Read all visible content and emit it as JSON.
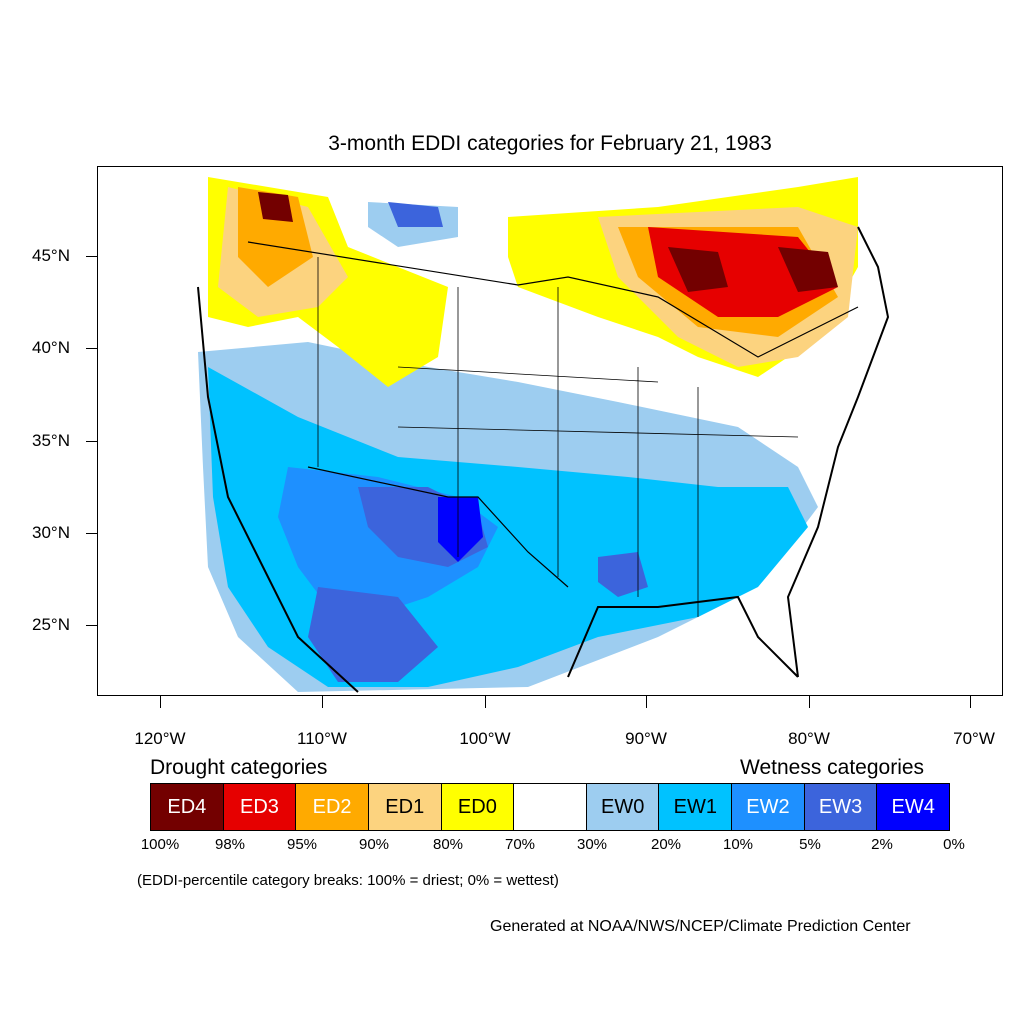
{
  "title": "3-month EDDI categories for February 21, 1983",
  "lat_labels": [
    "45°N",
    "40°N",
    "35°N",
    "30°N",
    "25°N"
  ],
  "lon_labels": [
    "120°W",
    "110°W",
    "100°W",
    "90°W",
    "80°W",
    "70°W"
  ],
  "drought_heading": "Drought categories",
  "wetness_heading": "Wetness categories",
  "legend": [
    {
      "label": "ED4",
      "color": "#730000",
      "text_color": "#ffffff"
    },
    {
      "label": "ED3",
      "color": "#e60000",
      "text_color": "#ffffff"
    },
    {
      "label": "ED2",
      "color": "#ffaa00",
      "text_color": "#ffffff"
    },
    {
      "label": "ED1",
      "color": "#fcd37f",
      "text_color": "#000000"
    },
    {
      "label": "ED0",
      "color": "#ffff00",
      "text_color": "#000000"
    },
    {
      "label": "",
      "color": "#ffffff",
      "text_color": "#000000"
    },
    {
      "label": "EW0",
      "color": "#9dcdf0",
      "text_color": "#000000"
    },
    {
      "label": "EW1",
      "color": "#00c2ff",
      "text_color": "#000000"
    },
    {
      "label": "EW2",
      "color": "#1e90ff",
      "text_color": "#ffffff"
    },
    {
      "label": "EW3",
      "color": "#3c64dc",
      "text_color": "#ffffff"
    },
    {
      "label": "EW4",
      "color": "#0000ff",
      "text_color": "#ffffff"
    }
  ],
  "percent_breaks": [
    "100%",
    "98%",
    "95%",
    "90%",
    "80%",
    "70%",
    "30%",
    "20%",
    "10%",
    "5%",
    "2%",
    "0%"
  ],
  "note": "(EDDI-percentile category breaks: 100% = driest; 0% = wettest)",
  "credit": "Generated at NOAA/NWS/NCEP/Climate Prediction Center"
}
